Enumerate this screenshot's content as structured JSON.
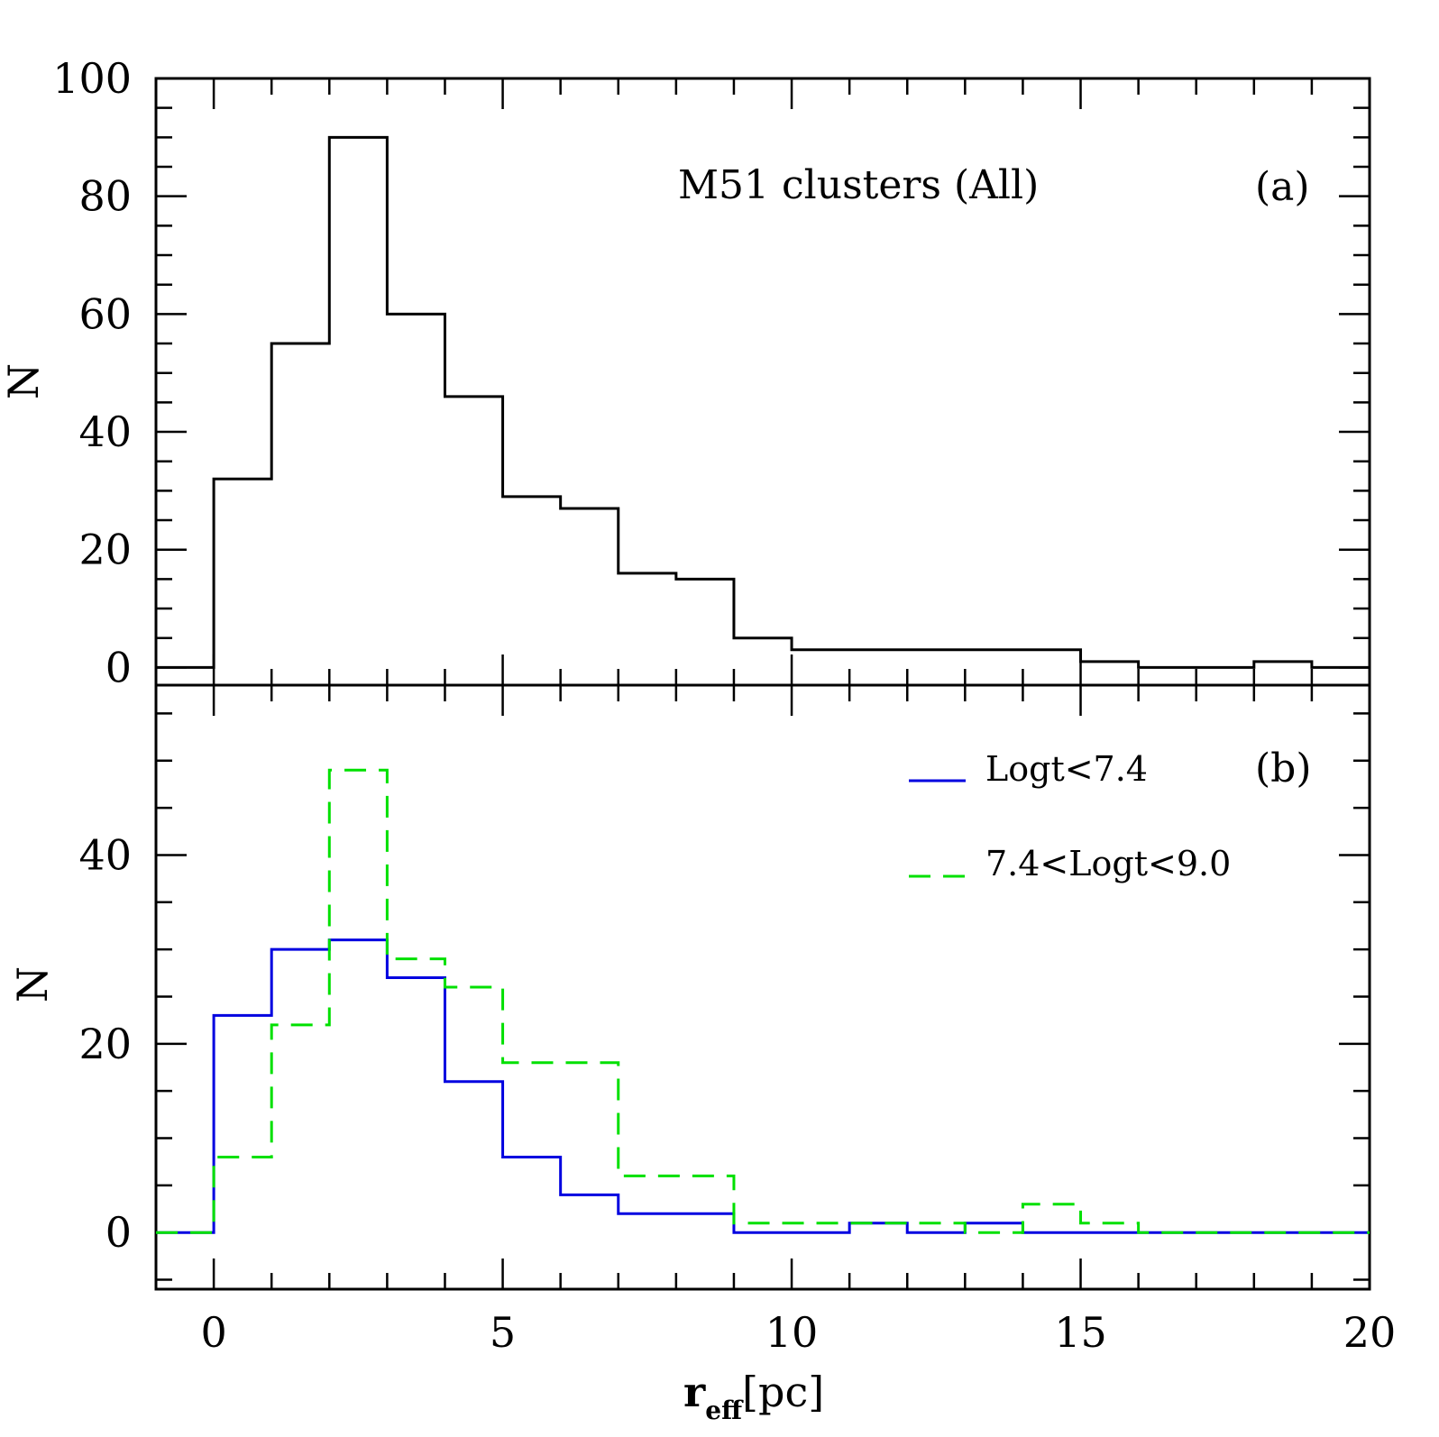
{
  "chart_data": [
    {
      "type": "histogram",
      "panel_label": "(a)",
      "title": "M51 clusters (All)",
      "xlabel": "r_eff[pc]",
      "ylabel": "N",
      "xlim": [
        -1,
        20
      ],
      "ylim": [
        -3,
        100
      ],
      "yticks": [
        0,
        20,
        40,
        60,
        80,
        100
      ],
      "ytick_labels": [
        "0",
        "20",
        "40",
        "60",
        "80",
        "100"
      ],
      "bin_edges": [
        -1,
        0,
        1,
        2,
        3,
        4,
        5,
        6,
        7,
        8,
        9,
        10,
        11,
        12,
        13,
        14,
        15,
        16,
        17,
        18,
        19,
        20
      ],
      "series": [
        {
          "name": "All",
          "color": "#000000",
          "dash": "solid",
          "values": [
            0,
            32,
            55,
            90,
            60,
            46,
            29,
            27,
            16,
            15,
            5,
            3,
            3,
            3,
            3,
            3,
            1,
            0,
            0,
            1,
            0
          ]
        }
      ]
    },
    {
      "type": "histogram",
      "panel_label": "(b)",
      "xlabel": "r_eff[pc]",
      "ylabel": "N",
      "xlim": [
        -1,
        20
      ],
      "ylim": [
        -6,
        58
      ],
      "yticks": [
        0,
        20,
        40
      ],
      "ytick_labels": [
        "0",
        "20",
        "40"
      ],
      "xticks": [
        0,
        5,
        10,
        15,
        20
      ],
      "xtick_labels": [
        "0",
        "5",
        "10",
        "15",
        "20"
      ],
      "bin_edges": [
        -1,
        0,
        1,
        2,
        3,
        4,
        5,
        6,
        7,
        8,
        9,
        10,
        11,
        12,
        13,
        14,
        15,
        16,
        17,
        18,
        19,
        20
      ],
      "legend": [
        {
          "label": "Logt<7.4",
          "color": "#0000e0",
          "dash": "solid"
        },
        {
          "label": "7.4<Logt<9.0",
          "color": "#00e000",
          "dash": "dashed"
        }
      ],
      "series": [
        {
          "name": "Logt<7.4",
          "color": "#0000e0",
          "dash": "solid",
          "values": [
            0,
            23,
            30,
            31,
            27,
            16,
            8,
            4,
            2,
            2,
            0,
            0,
            1,
            0,
            1,
            0,
            0,
            0,
            0,
            0,
            0
          ]
        },
        {
          "name": "7.4<Logt<9.0",
          "color": "#00e000",
          "dash": "dashed",
          "values": [
            0,
            8,
            22,
            49,
            29,
            26,
            18,
            18,
            6,
            6,
            1,
            1,
            1,
            1,
            0,
            3,
            1,
            0,
            0,
            0,
            0
          ]
        }
      ]
    }
  ],
  "labels": {
    "ylabel_a": "N",
    "ylabel_b": "N",
    "xlabel_main": "r",
    "xlabel_sub": "eff",
    "xlabel_unit": "[pc]"
  }
}
